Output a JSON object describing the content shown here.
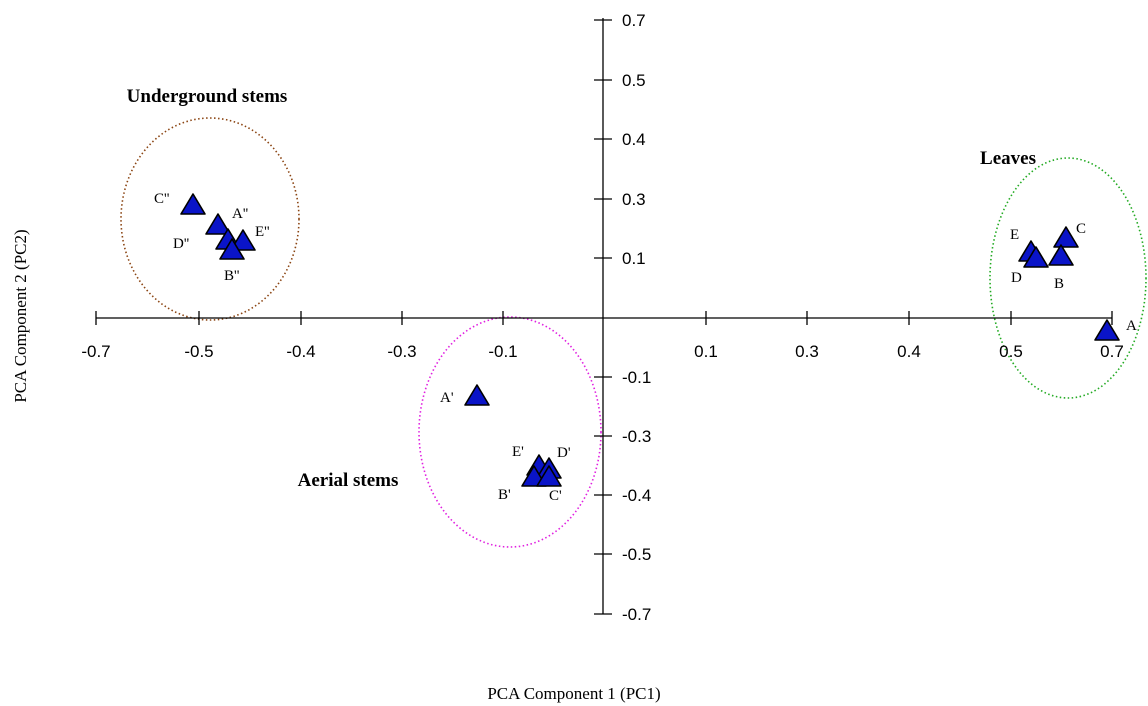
{
  "chart_data": {
    "type": "scatter",
    "xlabel": "PCA Component 1 (PC1)",
    "ylabel": "PCA Component 2 (PC2)",
    "x_ticks": [
      "-0.7",
      "-0.5",
      "-0.4",
      "-0.3",
      "-0.1",
      "0.1",
      "0.3",
      "0.4",
      "0.5",
      "0.7"
    ],
    "y_ticks": [
      "0.7",
      "0.5",
      "0.4",
      "0.3",
      "0.1",
      "-0.1",
      "-0.3",
      "-0.4",
      "-0.5",
      "-0.7"
    ],
    "grid": false,
    "marker": "triangle",
    "marker_color": "#0a14c8",
    "groups": [
      {
        "name": "Underground stems",
        "ellipse_color": "#8b4513",
        "points": [
          {
            "label": "C''",
            "x": -0.5,
            "y": 0.28
          },
          {
            "label": "A''",
            "x": -0.48,
            "y": 0.2
          },
          {
            "label": "D''",
            "x": -0.47,
            "y": 0.16
          },
          {
            "label": "E''",
            "x": -0.46,
            "y": 0.16
          },
          {
            "label": "B''",
            "x": -0.47,
            "y": 0.12
          }
        ]
      },
      {
        "name": "Aerial stems",
        "ellipse_color": "#e020e0",
        "points": [
          {
            "label": "A'",
            "x": -0.13,
            "y": -0.18
          },
          {
            "label": "E'",
            "x": -0.06,
            "y": -0.35
          },
          {
            "label": "D'",
            "x": -0.05,
            "y": -0.35
          },
          {
            "label": "B'",
            "x": -0.06,
            "y": -0.37
          },
          {
            "label": "C'",
            "x": -0.05,
            "y": -0.37
          }
        ]
      },
      {
        "name": "Leaves",
        "ellipse_color": "#22aa22",
        "points": [
          {
            "label": "E",
            "x": 0.52,
            "y": 0.12
          },
          {
            "label": "C",
            "x": 0.58,
            "y": 0.14
          },
          {
            "label": "D",
            "x": 0.52,
            "y": 0.11
          },
          {
            "label": "B",
            "x": 0.57,
            "y": 0.1
          },
          {
            "label": "A",
            "x": 0.66,
            "y": -0.03
          }
        ]
      }
    ]
  }
}
